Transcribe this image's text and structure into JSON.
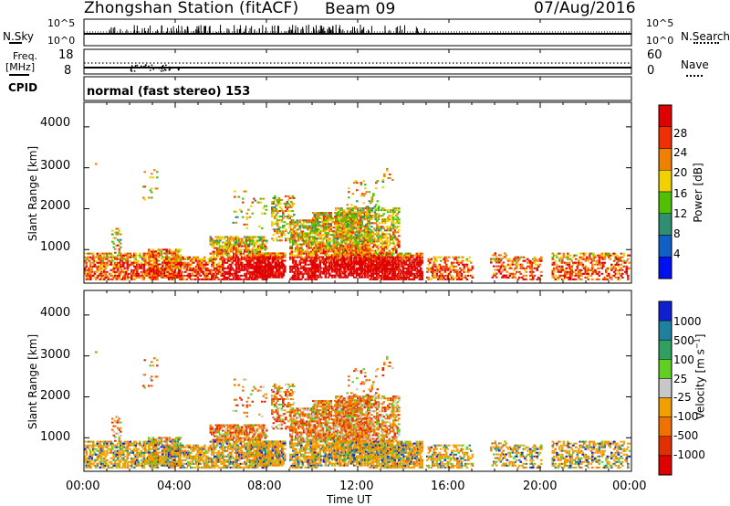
{
  "header": {
    "title": "Zhongshan Station (fitACF)",
    "beam": "Beam 09",
    "date": "07/Aug/2016"
  },
  "strip_noise": {
    "left_label": "N.Sky",
    "right_label": "N.Search",
    "left_ticks": [
      "10^5",
      "10^0"
    ],
    "right_ticks": [
      "10^5",
      "10^0"
    ]
  },
  "strip_freq": {
    "left_label": "Freq.",
    "left_unit": "[MHz]",
    "right_label": "Nave",
    "left_ticks": [
      "18",
      "8"
    ],
    "right_ticks": [
      "60",
      "0"
    ]
  },
  "strip_cpid": {
    "label": "CPID",
    "value": "normal (fast stereo) 153"
  },
  "colors": {
    "power": [
      "#0010f0",
      "#1060c8",
      "#2e9070",
      "#50c000",
      "#f0d000",
      "#f08000",
      "#f03000",
      "#e00000"
    ],
    "velocity": [
      "#1020d0",
      "#2080a0",
      "#30a060",
      "#60d020",
      "#c8c8c8",
      "#f0a000",
      "#f07000",
      "#e03000",
      "#e00000"
    ]
  },
  "chart_data": [
    {
      "type": "heatmap",
      "panel": "power",
      "ylabel": "Slant Range [km]",
      "ylim": [
        180,
        4600
      ],
      "yticks": [
        "1000",
        "2000",
        "3000",
        "4000"
      ],
      "xlim_hours": [
        0,
        24
      ],
      "colorbar_label": "Power [dB]",
      "colorbar_ticks": [
        "4",
        "8",
        "12",
        "16",
        "20",
        "24",
        "28"
      ],
      "colorbar_range": [
        0,
        32
      ]
    },
    {
      "type": "heatmap",
      "panel": "velocity",
      "ylabel": "Slant Range [km]",
      "ylim": [
        180,
        4600
      ],
      "yticks": [
        "1000",
        "2000",
        "3000",
        "4000"
      ],
      "xlim_hours": [
        0,
        24
      ],
      "colorbar_label": "Velocity [m s-1]",
      "colorbar_ticks": [
        "1000",
        "500",
        "100",
        "25",
        "-25",
        "-100",
        "-500",
        "-1000"
      ]
    }
  ],
  "xaxis": {
    "ticks": [
      "00:00",
      "04:00",
      "08:00",
      "12:00",
      "16:00",
      "20:00",
      "00:00"
    ],
    "label": "Time UT"
  }
}
